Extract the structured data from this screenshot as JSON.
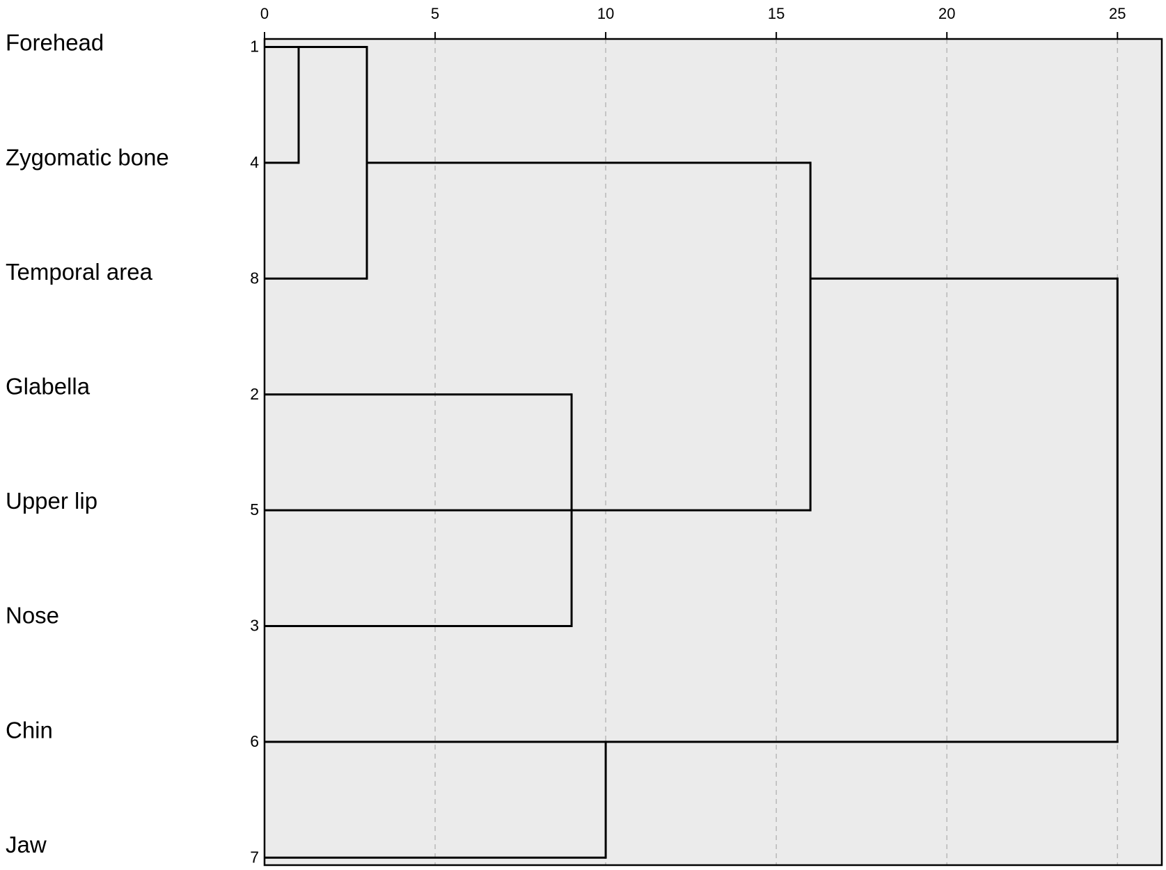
{
  "chart_data": {
    "type": "dendrogram",
    "leaves": [
      {
        "id": "1",
        "label": "Forehead"
      },
      {
        "id": "4",
        "label": "Zygomatic bone"
      },
      {
        "id": "8",
        "label": "Temporal area"
      },
      {
        "id": "2",
        "label": "Glabella"
      },
      {
        "id": "5",
        "label": "Upper lip"
      },
      {
        "id": "3",
        "label": "Nose"
      },
      {
        "id": "6",
        "label": "Chin"
      },
      {
        "id": "7",
        "label": "Jaw"
      }
    ],
    "merges": [
      {
        "children": [
          0,
          1
        ],
        "height": 1
      },
      {
        "children": [
          8,
          2
        ],
        "height": 3
      },
      {
        "children": [
          3,
          4,
          5
        ],
        "height": 9
      },
      {
        "children": [
          9,
          10
        ],
        "height": 16
      },
      {
        "children": [
          6,
          7
        ],
        "height": 10
      },
      {
        "children": [
          11,
          12
        ],
        "height": 25
      }
    ],
    "xlim": [
      0,
      26.3
    ],
    "xticks": [
      0,
      5,
      10,
      15,
      20,
      25
    ],
    "grid": true,
    "background": "#ebebeb",
    "line_color": "#000000",
    "grid_color": "#b8b8b8"
  }
}
